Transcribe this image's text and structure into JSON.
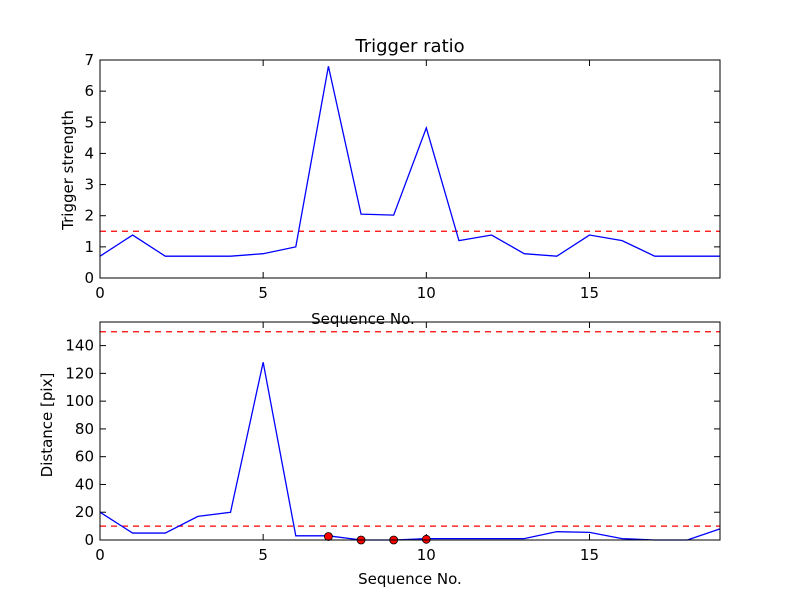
{
  "chart_data": [
    {
      "type": "line",
      "title": "Trigger ratio",
      "xlabel": "Sequence No.",
      "ylabel": "Trigger strength",
      "xlim": [
        0,
        19
      ],
      "ylim": [
        0,
        7
      ],
      "xticks": [
        0,
        5,
        10,
        15
      ],
      "yticks": [
        0,
        1,
        2,
        3,
        4,
        5,
        6,
        7
      ],
      "grid": false,
      "colors": {
        "line": "#0000ff",
        "threshold": "#ff0000"
      },
      "series": [
        {
          "x": [
            0,
            1,
            2,
            3,
            4,
            5,
            6,
            7,
            8,
            9,
            10,
            11,
            12,
            13,
            14,
            15,
            16,
            17,
            18,
            19
          ],
          "y": [
            0.7,
            1.38,
            0.7,
            0.7,
            0.7,
            0.78,
            1.0,
            6.8,
            2.05,
            2.02,
            4.82,
            1.2,
            1.38,
            0.78,
            0.7,
            1.38,
            1.2,
            0.7,
            0.7,
            0.7
          ]
        }
      ],
      "thresholds": [
        1.5
      ]
    },
    {
      "type": "line",
      "title": "",
      "xlabel": "Sequence No.",
      "ylabel": "Distance [pix]",
      "xlim": [
        0,
        19
      ],
      "ylim": [
        0,
        157
      ],
      "xticks": [
        0,
        5,
        10,
        15
      ],
      "yticks": [
        0,
        20,
        40,
        60,
        80,
        100,
        120,
        140
      ],
      "grid": false,
      "colors": {
        "line": "#0000ff",
        "threshold": "#ff0000",
        "markers": "#ff0000"
      },
      "series": [
        {
          "x": [
            0,
            1,
            2,
            3,
            4,
            5,
            6,
            7,
            8,
            9,
            10,
            11,
            12,
            13,
            14,
            15,
            16,
            17,
            18,
            19
          ],
          "y": [
            20,
            5,
            5,
            17,
            20,
            128,
            3,
            3,
            0,
            0,
            1,
            1,
            1,
            1,
            6,
            5.5,
            1,
            0,
            0,
            8
          ]
        }
      ],
      "markers": {
        "x": [
          7,
          8,
          9,
          10
        ],
        "y": [
          2.5,
          0,
          0,
          0.5
        ]
      },
      "thresholds": [
        10,
        150
      ]
    }
  ]
}
